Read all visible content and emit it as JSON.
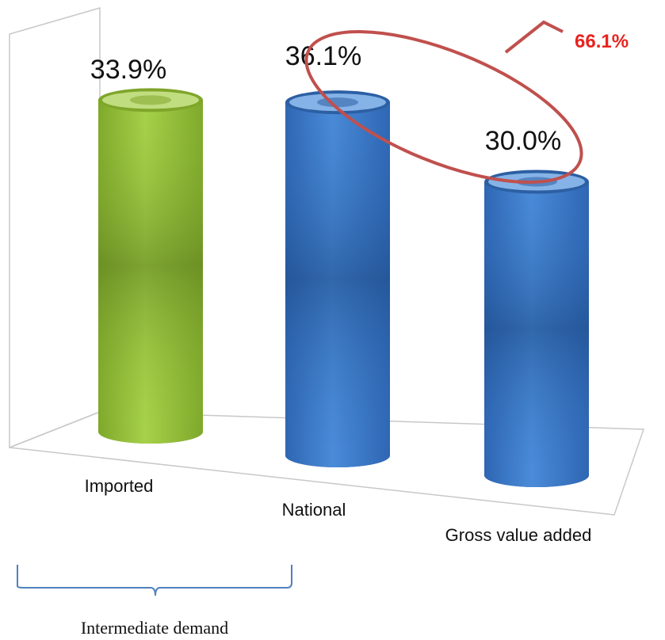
{
  "chart_data": {
    "type": "bar",
    "style": "3d-cylinder",
    "categories": [
      "Imported",
      "National",
      "Gross value added"
    ],
    "values": [
      33.9,
      36.1,
      30.0
    ],
    "value_labels": [
      "33.9%",
      "36.1%",
      "30.0%"
    ],
    "colors": [
      "#8fbf2f",
      "#3a78c8",
      "#3a78c8"
    ],
    "ylim": [
      0,
      40
    ],
    "grid": false,
    "annotations": {
      "callout_label": "66.1%",
      "callout_color": "#e8231f",
      "ellipse_color": "#c0504d",
      "group_label": "Intermediate demand",
      "group_color": "#4f81bd"
    }
  }
}
